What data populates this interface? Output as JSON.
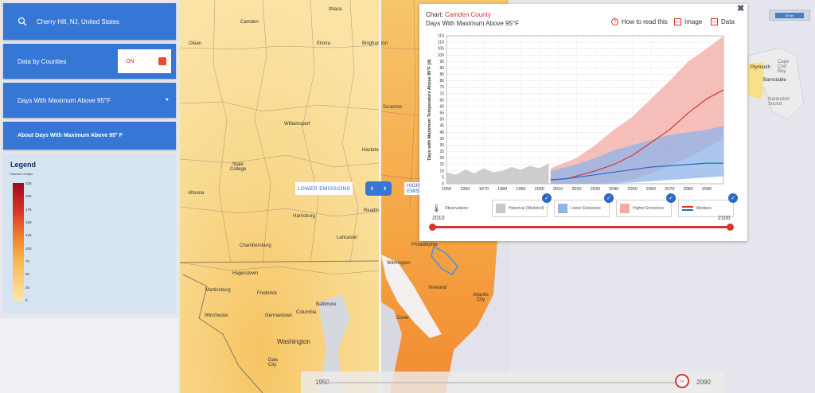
{
  "search": {
    "value": "Cherry Hill, NJ, United States"
  },
  "counties": {
    "label": "Data by Counties",
    "toggle": "ON"
  },
  "variable": {
    "label": "Days With Maximum Above 95°F"
  },
  "about": {
    "label": "About Days With Maximum Above 95° F"
  },
  "legend": {
    "title": "Legend",
    "subtitle": "Number of days",
    "ticks": [
      "225",
      "200",
      "175",
      "150",
      "125",
      "100",
      "75",
      "50",
      "25",
      "0"
    ]
  },
  "map": {
    "lower_label": "LOWER EMISSIONS",
    "higher_label": "HIGHER EMISSIONS",
    "places": [
      "Ithaca",
      "Camden",
      "Olean",
      "Elmira",
      "Binghamton",
      "Scranton",
      "Williamsport",
      "State College",
      "Hazleton",
      "Altoona",
      "Reading",
      "Harrisburg",
      "Lancaster",
      "Chambersburg",
      "Hagerstown",
      "Martinsburg",
      "Frederick",
      "Winchester",
      "Germantown",
      "Baltimore",
      "Columbia",
      "Washington",
      "Dale City",
      "Philadelphia",
      "Wilmington",
      "Vineland",
      "Atlantic City",
      "Dover",
      "Barnstable",
      "Plymouth",
      "Cape Cod Bay",
      "Nantucket Sound"
    ],
    "zoom_label": "50 km"
  },
  "time_slider": {
    "start": "1950",
    "end": "2090"
  },
  "chart_card": {
    "title_prefix": "Chart:",
    "county": "Camden County",
    "subtitle": "Days With Maximum Above 95°F",
    "links": {
      "how": "How to read this",
      "image": "Image",
      "data": "Data"
    },
    "controls": {
      "observations": "Observations",
      "historical": "Historical (Modeled)",
      "lower": "Lower Emissions",
      "higher": "Higher Emissions",
      "medians": "Medians"
    },
    "range_start": "2010",
    "range_end": "2100"
  },
  "colors": {
    "accent": "#3677d6",
    "red": "#d8342c",
    "historical": "#c8c8c8",
    "lower": "#8fb4ea",
    "higher": "#f4a9a3"
  },
  "chart_data": {
    "type": "area",
    "title": "",
    "ylabel": "Days with Maximum Temperature Above 95°F (d)",
    "xlabel": "",
    "xlim": [
      1950,
      2099
    ],
    "ylim": [
      0,
      115
    ],
    "x_ticks": [
      1950,
      1960,
      1970,
      1980,
      1990,
      2000,
      2010,
      2020,
      2030,
      2040,
      2050,
      2060,
      2070,
      2080,
      2090
    ],
    "y_ticks": [
      0,
      5,
      10,
      15,
      20,
      25,
      30,
      35,
      40,
      45,
      50,
      55,
      60,
      65,
      70,
      75,
      80,
      85,
      90,
      95,
      100,
      105,
      110,
      115
    ],
    "historical_band": {
      "x": [
        1950,
        1955,
        1960,
        1965,
        1970,
        1975,
        1980,
        1985,
        1990,
        1995,
        2000,
        2005
      ],
      "min": [
        0,
        0,
        0,
        0,
        0,
        0,
        0,
        0,
        0,
        0,
        0,
        0
      ],
      "max": [
        9,
        7,
        11,
        8,
        12,
        9,
        10,
        13,
        11,
        14,
        12,
        16
      ]
    },
    "lower_band": {
      "x": [
        2006,
        2020,
        2030,
        2040,
        2050,
        2060,
        2070,
        2080,
        2090,
        2099
      ],
      "min": [
        0,
        0,
        0,
        0,
        1,
        2,
        3,
        4,
        5,
        6
      ],
      "max": [
        10,
        15,
        20,
        26,
        30,
        34,
        38,
        40,
        42,
        45
      ]
    },
    "higher_band": {
      "x": [
        2006,
        2020,
        2030,
        2040,
        2050,
        2060,
        2070,
        2080,
        2090,
        2099
      ],
      "min": [
        0,
        0,
        0,
        1,
        3,
        8,
        14,
        20,
        28,
        35
      ],
      "max": [
        12,
        20,
        30,
        42,
        52,
        66,
        80,
        95,
        105,
        115
      ]
    },
    "higher_median": {
      "x": [
        2006,
        2015,
        2020,
        2030,
        2040,
        2050,
        2060,
        2070,
        2080,
        2090,
        2099
      ],
      "values": [
        3,
        4,
        6,
        10,
        15,
        22,
        32,
        42,
        55,
        66,
        73
      ]
    },
    "lower_median": {
      "x": [
        2006,
        2015,
        2020,
        2030,
        2040,
        2050,
        2060,
        2070,
        2080,
        2090,
        2099
      ],
      "values": [
        3,
        4,
        5,
        7,
        9,
        11,
        13,
        14,
        15,
        16,
        16
      ]
    }
  }
}
